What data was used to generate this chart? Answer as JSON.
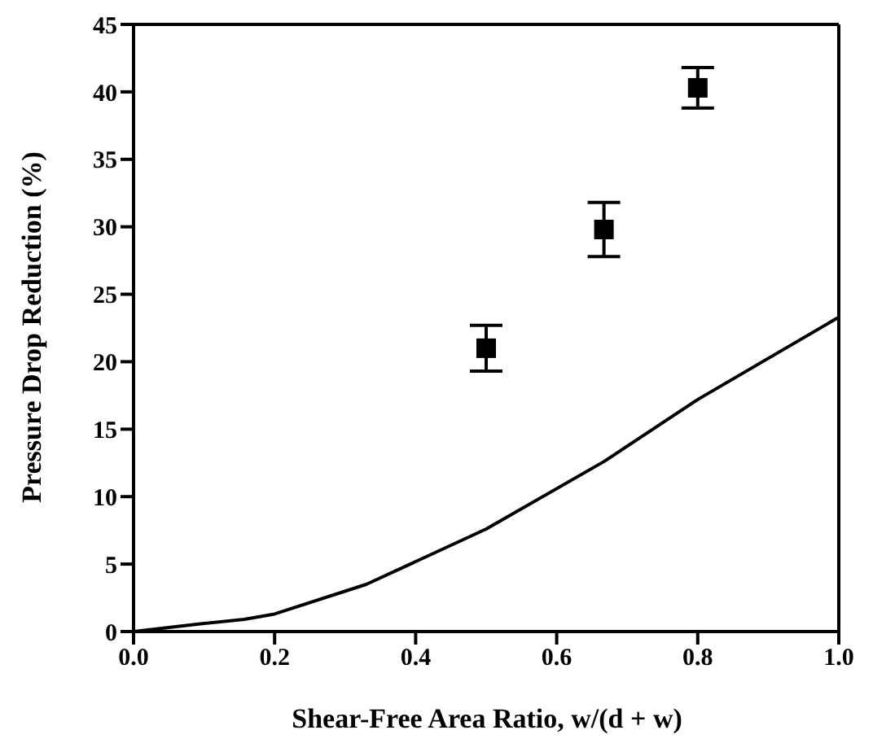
{
  "chart_data": {
    "type": "line",
    "xlabel": "Shear-Free Area Ratio, w/(d + w)",
    "ylabel": "Pressure Drop Reduction (%)",
    "xlim": [
      0,
      1
    ],
    "xticks": [
      {
        "value": 0,
        "label": "0.0"
      },
      0.2,
      0.4,
      0.6,
      0.8,
      {
        "value": 1,
        "label": "1.0"
      }
    ],
    "ylim": [
      0,
      45
    ],
    "yticks": [
      0,
      5,
      10,
      15,
      20,
      25,
      30,
      35,
      40,
      45
    ],
    "series": [
      {
        "color": "#000000",
        "x": [
          0,
          0.05,
          0.1,
          0.157,
          0.2,
          0.33,
          0.5,
          0.667,
          0.8,
          1.0
        ],
        "values": [
          0,
          0.3,
          0.6,
          0.9,
          1.3,
          3.5,
          7.6,
          12.6,
          17.2,
          23.3
        ]
      },
      {
        "type": "scatter",
        "color": "#000000",
        "marker": "square",
        "x": [
          0.5,
          0.667,
          0.8
        ],
        "values": [
          21.0,
          29.8,
          40.3
        ],
        "errors": [
          1.7,
          2.0,
          1.5
        ]
      }
    ]
  }
}
